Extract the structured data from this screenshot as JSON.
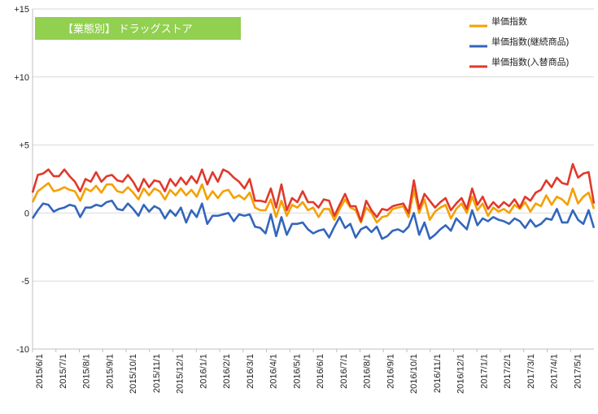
{
  "chart_data": {
    "type": "line",
    "title": "【業態別】 ドラッグストア",
    "title_bg_color": "#92d050",
    "legend_placement": "top-right",
    "grid": "horizontal",
    "ylim": [
      -10,
      15
    ],
    "yticks": [
      15,
      10,
      5,
      0,
      -5,
      -10
    ],
    "ytick_labels": [
      "+15",
      "+10",
      "+5",
      "0",
      "-5",
      "-10"
    ],
    "xtick_labels": [
      "2015/6/1",
      "2015/7/1",
      "2015/8/1",
      "2015/9/1",
      "2015/10/1",
      "2015/11/1",
      "2015/12/1",
      "2016/1/1",
      "2016/2/1",
      "2016/3/1",
      "2016/4/1",
      "2016/5/1",
      "2016/6/1",
      "2016/7/1",
      "2016/8/1",
      "2016/9/1",
      "2016/10/1",
      "2016/11/1",
      "2016/12/1",
      "2017/1/1",
      "2017/2/1",
      "2017/3/1",
      "2017/4/1",
      "2017/5/1"
    ],
    "series": [
      {
        "name": "単価指数",
        "color": "#f5a000",
        "values": [
          0.8,
          1.6,
          1.9,
          2.2,
          1.6,
          1.7,
          1.9,
          1.7,
          1.6,
          0.9,
          1.8,
          1.6,
          2.0,
          1.5,
          2.1,
          2.1,
          1.6,
          1.5,
          1.9,
          1.5,
          1.0,
          1.8,
          1.3,
          1.8,
          1.6,
          1.0,
          1.7,
          1.3,
          1.8,
          1.3,
          1.7,
          1.2,
          2.1,
          1.0,
          1.6,
          1.1,
          1.6,
          1.7,
          1.1,
          1.3,
          1.0,
          1.5,
          0.4,
          0.2,
          0.2,
          1.0,
          -0.3,
          0.9,
          -0.2,
          0.6,
          0.4,
          0.8,
          0.2,
          0.4,
          -0.3,
          0.3,
          0.3,
          -0.5,
          0.3,
          1.0,
          0.4,
          0.2,
          -0.7,
          0.4,
          0.0,
          -0.7,
          -0.3,
          -0.2,
          0.3,
          0.4,
          0.5,
          -0.3,
          1.7,
          0.0,
          1.0,
          -0.5,
          0.1,
          0.4,
          0.6,
          -0.4,
          0.3,
          0.7,
          0.0,
          1.2,
          0.2,
          0.7,
          -0.2,
          0.4,
          0.1,
          0.3,
          0.0,
          0.6,
          0.3,
          0.8,
          0.1,
          0.7,
          0.5,
          1.3,
          0.6,
          1.2,
          1.0,
          0.6,
          1.8,
          0.7,
          1.2,
          1.5,
          0.3
        ]
      },
      {
        "name": "単価指数(継続商品)",
        "color": "#3366bb",
        "values": [
          -0.4,
          0.2,
          0.7,
          0.6,
          0.1,
          0.3,
          0.4,
          0.6,
          0.5,
          -0.3,
          0.4,
          0.4,
          0.6,
          0.5,
          0.8,
          0.9,
          0.3,
          0.2,
          0.7,
          0.3,
          -0.2,
          0.6,
          0.1,
          0.5,
          0.3,
          -0.4,
          0.2,
          -0.2,
          0.4,
          -0.7,
          0.2,
          -0.3,
          0.7,
          -0.8,
          -0.2,
          -0.2,
          -0.1,
          0.0,
          -0.6,
          -0.1,
          -0.2,
          -0.1,
          -1.0,
          -1.1,
          -1.5,
          -0.1,
          -1.7,
          -0.3,
          -1.6,
          -0.8,
          -0.8,
          -0.7,
          -1.2,
          -1.5,
          -1.3,
          -1.2,
          -1.8,
          -1.0,
          -0.3,
          -1.1,
          -0.8,
          -1.8,
          -1.2,
          -1.0,
          -1.4,
          -1.0,
          -1.9,
          -1.7,
          -1.3,
          -1.2,
          -1.4,
          -1.0,
          0.0,
          -1.6,
          -0.7,
          -1.9,
          -1.6,
          -1.2,
          -0.9,
          -1.3,
          -0.4,
          -0.8,
          -1.2,
          0.2,
          -0.9,
          -0.4,
          -0.6,
          -0.3,
          -0.5,
          -0.6,
          -0.8,
          -0.4,
          -0.6,
          -1.1,
          -0.5,
          -1.0,
          -0.8,
          -0.4,
          -0.5,
          0.3,
          -0.7,
          -0.7,
          0.2,
          -0.5,
          -0.8,
          0.2,
          -1.1
        ]
      },
      {
        "name": "単価指数(入替商品)",
        "color": "#e0392b",
        "values": [
          1.5,
          2.8,
          2.9,
          3.2,
          2.7,
          2.7,
          3.2,
          2.7,
          2.3,
          1.6,
          2.5,
          2.3,
          3.0,
          2.3,
          2.7,
          2.8,
          2.4,
          2.3,
          2.8,
          2.3,
          1.6,
          2.5,
          1.9,
          2.4,
          2.3,
          1.6,
          2.5,
          2.0,
          2.6,
          2.1,
          2.7,
          2.2,
          3.2,
          2.1,
          3.0,
          2.3,
          3.2,
          3.0,
          2.6,
          2.3,
          1.8,
          2.5,
          0.9,
          0.9,
          0.8,
          1.8,
          0.4,
          2.1,
          0.2,
          1.1,
          0.8,
          1.6,
          0.8,
          0.8,
          0.4,
          1.0,
          0.9,
          -0.2,
          0.6,
          1.4,
          0.5,
          0.5,
          -0.6,
          0.9,
          0.2,
          -0.3,
          0.3,
          0.2,
          0.5,
          0.6,
          0.7,
          0.0,
          2.4,
          0.3,
          1.4,
          0.9,
          0.4,
          0.8,
          1.1,
          0.2,
          0.7,
          1.1,
          0.3,
          1.8,
          0.6,
          1.2,
          0.3,
          0.8,
          0.4,
          0.8,
          0.5,
          1.0,
          0.4,
          1.2,
          0.9,
          1.5,
          1.7,
          2.4,
          1.9,
          2.6,
          2.2,
          2.1,
          3.6,
          2.6,
          2.9,
          3.0,
          0.7
        ]
      }
    ]
  }
}
